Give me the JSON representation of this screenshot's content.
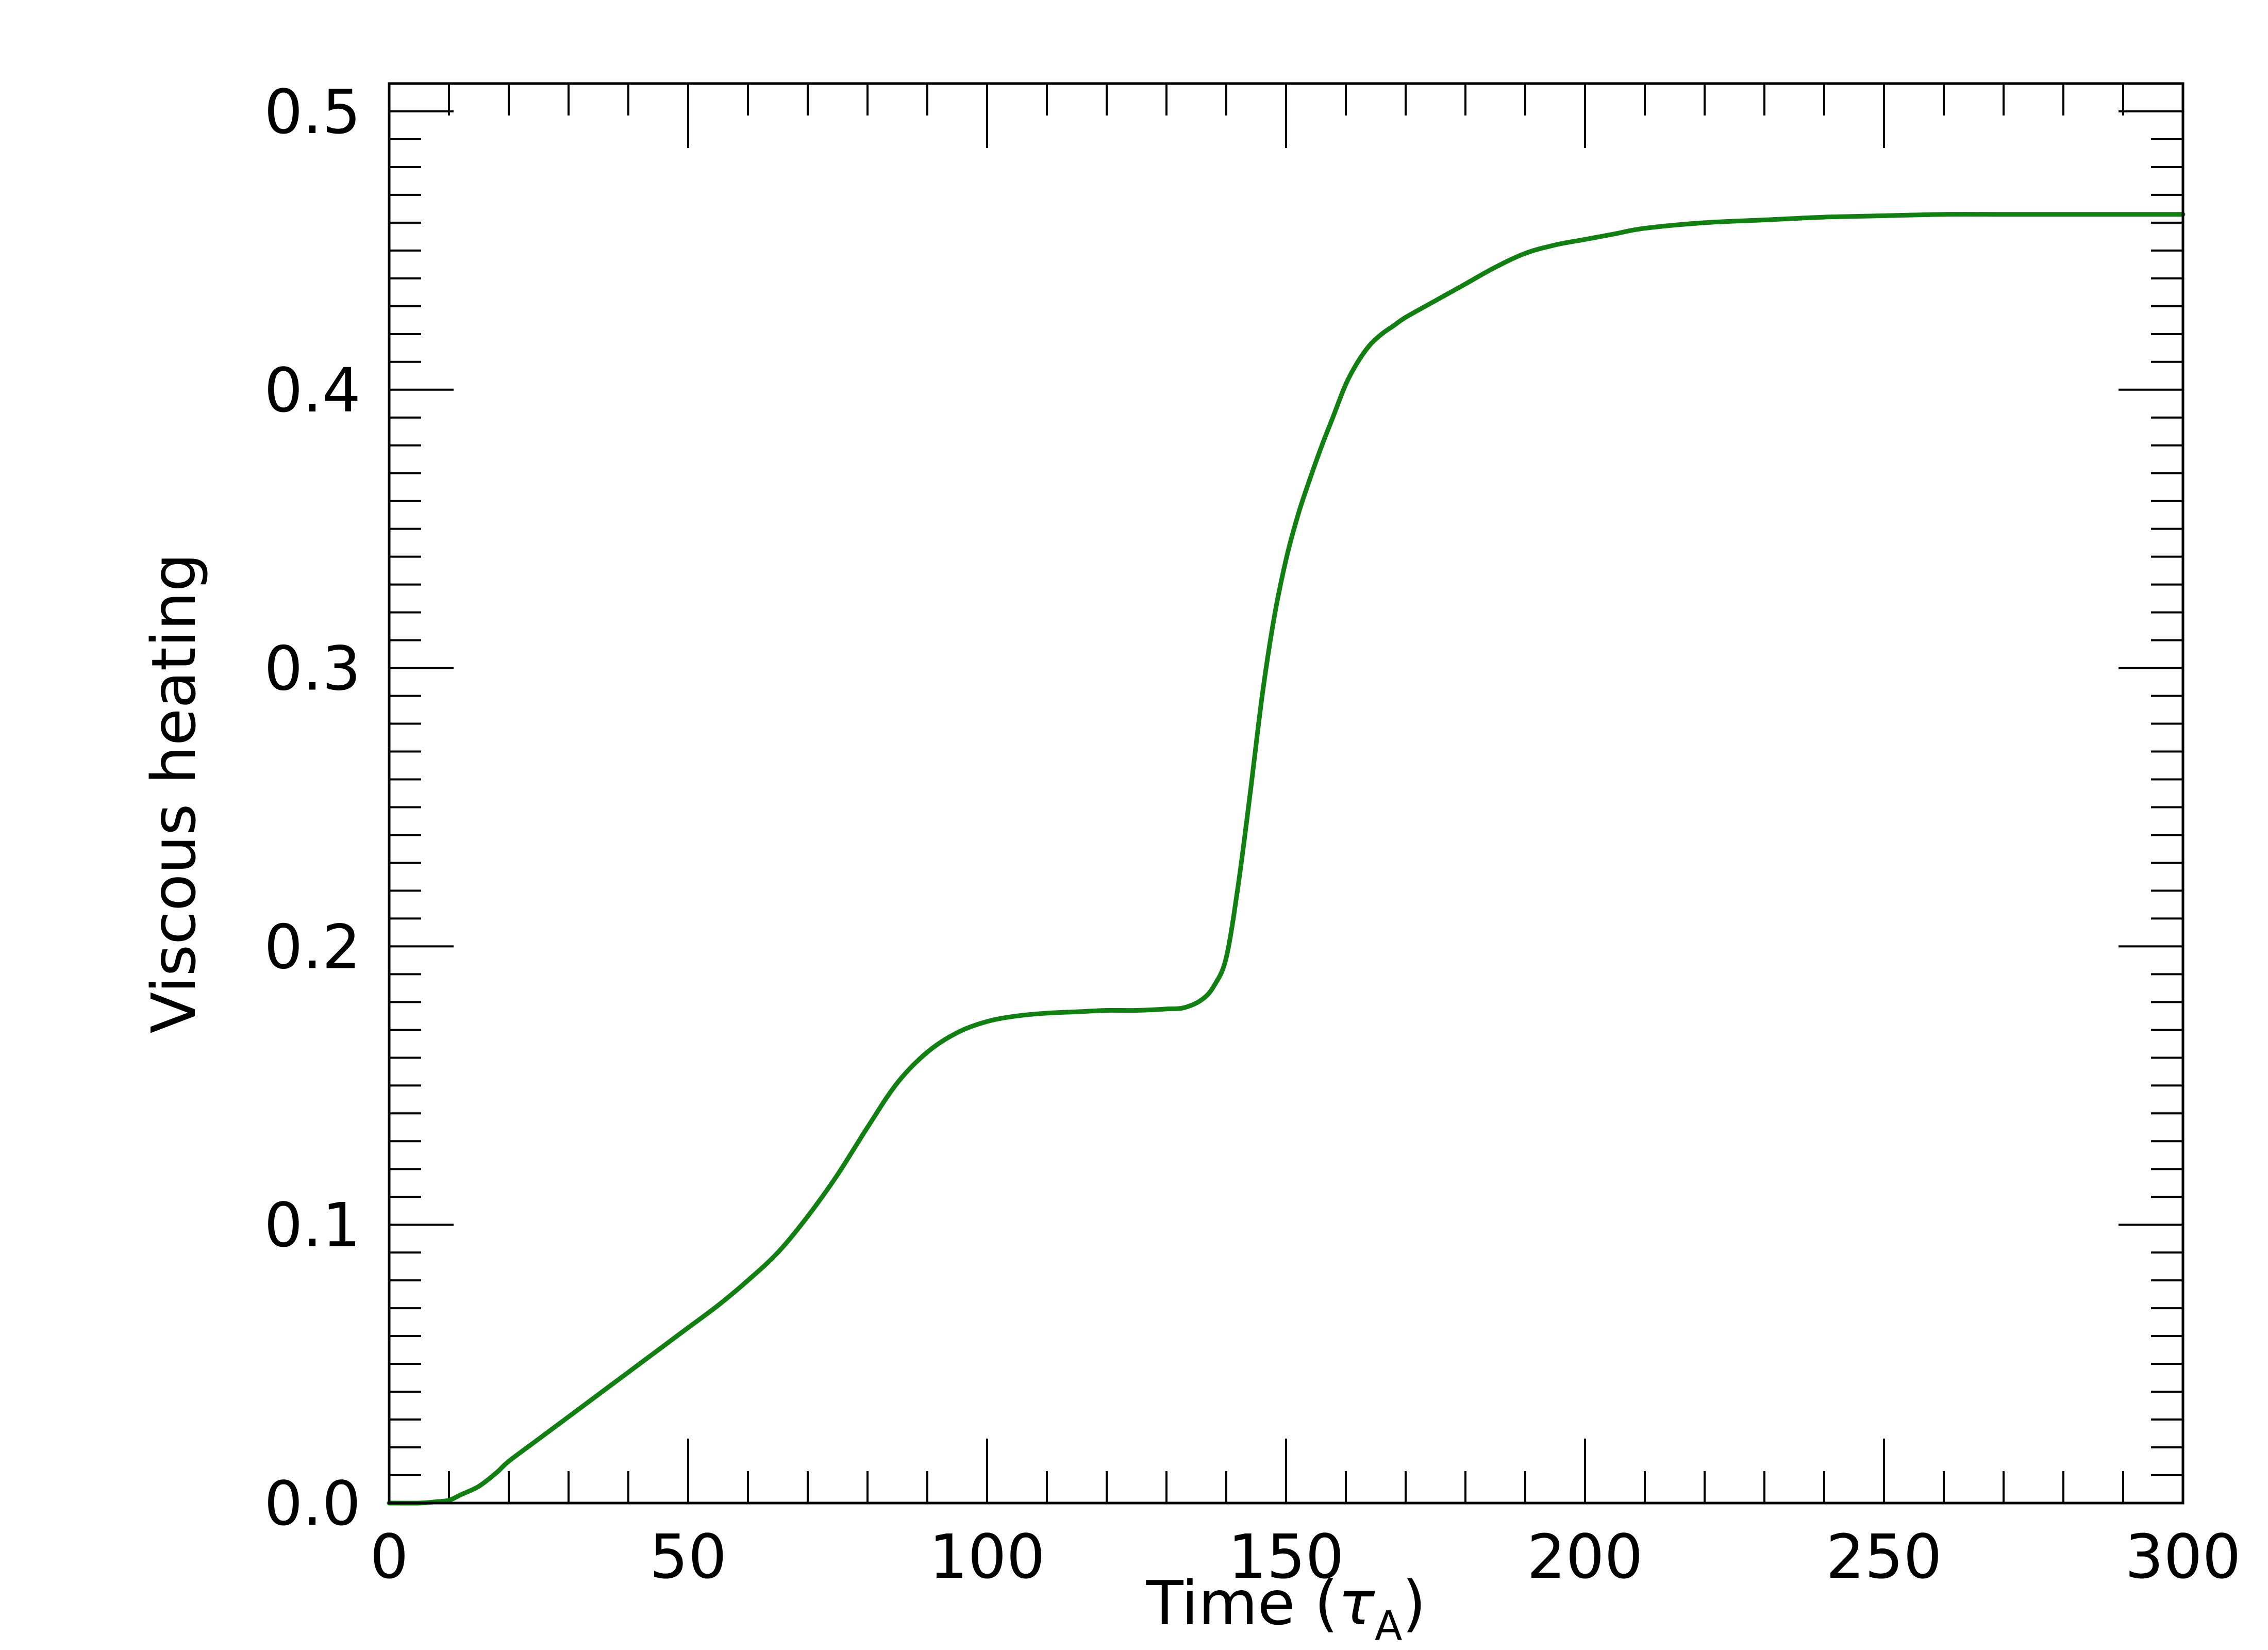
{
  "chart_data": {
    "type": "line",
    "title": "",
    "xlabel": "Time (",
    "xlabel_symbol": "τ",
    "xlabel_subscript": "A",
    "xlabel_close": ")",
    "ylabel": "Viscous heating",
    "xlim": [
      0,
      300
    ],
    "ylim": [
      0,
      0.51
    ],
    "x_ticks": [
      0,
      50,
      100,
      150,
      200,
      250,
      300
    ],
    "x_tick_labels": [
      "0",
      "50",
      "100",
      "150",
      "200",
      "250",
      "300"
    ],
    "y_ticks": [
      0,
      0.1,
      0.2,
      0.3,
      0.4,
      0.5
    ],
    "y_tick_labels": [
      "0.0",
      "0.1",
      "0.2",
      "0.3",
      "0.4",
      "0.5"
    ],
    "x_minor_step": 10,
    "y_minor_step": 0.01,
    "grid": false,
    "series": [
      {
        "color": "#117f11",
        "x": [
          0,
          5,
          8,
          10,
          12,
          15,
          18,
          20,
          25,
          30,
          35,
          40,
          45,
          50,
          55,
          60,
          65,
          70,
          75,
          80,
          85,
          90,
          95,
          100,
          105,
          110,
          115,
          120,
          125,
          130,
          133,
          136,
          138,
          140,
          142,
          144,
          146,
          148,
          150,
          152,
          154,
          156,
          158,
          160,
          162,
          164,
          166,
          168,
          170,
          175,
          180,
          185,
          190,
          195,
          200,
          205,
          210,
          220,
          230,
          240,
          250,
          260,
          270,
          280,
          290,
          300
        ],
        "y": [
          0.0,
          0.0,
          0.0005,
          0.001,
          0.003,
          0.006,
          0.011,
          0.015,
          0.023,
          0.031,
          0.039,
          0.047,
          0.055,
          0.063,
          0.071,
          0.08,
          0.09,
          0.103,
          0.118,
          0.135,
          0.151,
          0.162,
          0.169,
          0.173,
          0.175,
          0.176,
          0.1765,
          0.177,
          0.177,
          0.1775,
          0.178,
          0.181,
          0.186,
          0.196,
          0.222,
          0.255,
          0.29,
          0.318,
          0.339,
          0.355,
          0.368,
          0.38,
          0.391,
          0.402,
          0.41,
          0.416,
          0.42,
          0.423,
          0.426,
          0.432,
          0.438,
          0.444,
          0.449,
          0.452,
          0.454,
          0.456,
          0.458,
          0.46,
          0.461,
          0.462,
          0.4625,
          0.463,
          0.463,
          0.463,
          0.463,
          0.463
        ]
      }
    ]
  }
}
